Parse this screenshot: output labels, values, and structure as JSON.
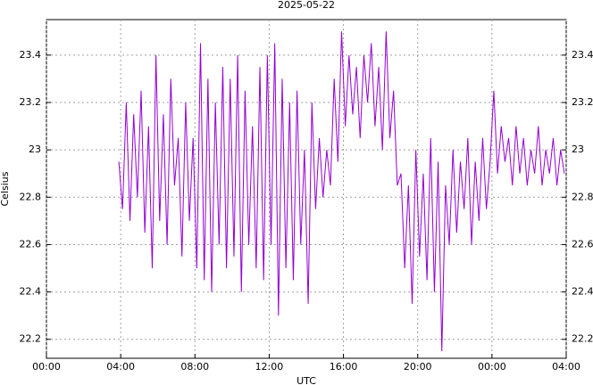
{
  "chart_data": {
    "type": "line",
    "title": "2025-05-22",
    "x_label": "UTC",
    "y_label": "Celsius",
    "x": [
      3.9,
      4.1,
      4.3,
      4.5,
      4.7,
      4.9,
      5.1,
      5.3,
      5.5,
      5.7,
      5.9,
      6.1,
      6.3,
      6.5,
      6.7,
      6.9,
      7.1,
      7.3,
      7.5,
      7.7,
      7.9,
      8.1,
      8.3,
      8.5,
      8.7,
      8.9,
      9.1,
      9.3,
      9.5,
      9.7,
      9.9,
      10.1,
      10.3,
      10.5,
      10.7,
      10.9,
      11.1,
      11.3,
      11.5,
      11.7,
      11.9,
      12.1,
      12.3,
      12.5,
      12.7,
      12.9,
      13.1,
      13.3,
      13.5,
      13.7,
      13.9,
      14.1,
      14.3,
      14.5,
      14.7,
      14.9,
      15.1,
      15.3,
      15.5,
      15.7,
      15.9,
      16.1,
      16.3,
      16.5,
      16.7,
      16.9,
      17.1,
      17.3,
      17.5,
      17.7,
      17.9,
      18.1,
      18.3,
      18.5,
      18.7,
      18.9,
      19.1,
      19.3,
      19.5,
      19.7,
      19.9,
      20.1,
      20.3,
      20.5,
      20.7,
      20.9,
      21.1,
      21.3,
      21.5,
      21.7,
      21.9,
      22.1,
      22.3,
      22.5,
      22.7,
      22.9,
      23.1,
      23.3,
      23.5,
      23.7,
      23.9,
      24.1,
      24.3,
      24.5,
      24.7,
      24.9,
      25.1,
      25.3,
      25.5,
      25.7,
      25.9,
      26.1,
      26.3,
      26.5,
      26.7,
      26.9,
      27.1,
      27.3,
      27.5,
      27.7,
      27.9
    ],
    "series": [
      {
        "name": "Celsius",
        "color": "#9400d3",
        "values": [
          22.95,
          22.75,
          23.2,
          22.7,
          23.15,
          22.8,
          23.25,
          22.65,
          23.1,
          22.5,
          23.4,
          22.7,
          23.15,
          22.6,
          23.3,
          22.85,
          23.05,
          22.55,
          23.2,
          22.7,
          23.05,
          22.5,
          23.45,
          22.45,
          23.3,
          22.4,
          23.2,
          22.6,
          23.35,
          22.5,
          23.3,
          22.55,
          23.4,
          22.4,
          23.25,
          22.6,
          23.1,
          22.5,
          23.35,
          22.45,
          23.4,
          22.6,
          23.45,
          22.3,
          23.3,
          22.5,
          23.2,
          22.45,
          23.25,
          22.6,
          23.0,
          22.35,
          23.2,
          22.75,
          23.05,
          22.8,
          23.0,
          22.85,
          23.3,
          22.95,
          23.5,
          23.1,
          23.4,
          23.15,
          23.35,
          23.05,
          23.4,
          23.2,
          23.45,
          23.1,
          23.35,
          23.0,
          23.5,
          23.05,
          23.25,
          22.85,
          22.9,
          22.5,
          22.85,
          22.35,
          23.0,
          22.55,
          22.9,
          22.45,
          23.05,
          22.4,
          22.95,
          22.15,
          22.85,
          22.6,
          23.0,
          22.65,
          22.95,
          22.75,
          23.05,
          22.6,
          22.95,
          22.7,
          23.05,
          22.75,
          22.95,
          23.25,
          22.9,
          23.1,
          22.95,
          23.05,
          22.85,
          23.1,
          22.9,
          23.05,
          22.85,
          23.0,
          22.9,
          23.1,
          22.85,
          23.0,
          22.9,
          23.05,
          22.85,
          23.0,
          22.9
        ]
      }
    ],
    "xlim": [
      0,
      28
    ],
    "xticks": [
      {
        "value": 0,
        "label": "00:00"
      },
      {
        "value": 4,
        "label": "04:00"
      },
      {
        "value": 8,
        "label": "08:00"
      },
      {
        "value": 12,
        "label": "12:00"
      },
      {
        "value": 16,
        "label": "16:00"
      },
      {
        "value": 20,
        "label": "20:00"
      },
      {
        "value": 24,
        "label": "00:00"
      },
      {
        "value": 28,
        "label": "04:00"
      }
    ],
    "ylim": [
      22.12,
      23.55
    ],
    "yticks": [
      22.2,
      22.4,
      22.6,
      22.8,
      23,
      23.2,
      23.4
    ],
    "y2lim": [
      22.12,
      23.55
    ],
    "y2ticks": [
      22.2,
      22.4,
      22.6,
      22.8,
      23,
      23.2,
      23.4
    ],
    "grid": true
  }
}
